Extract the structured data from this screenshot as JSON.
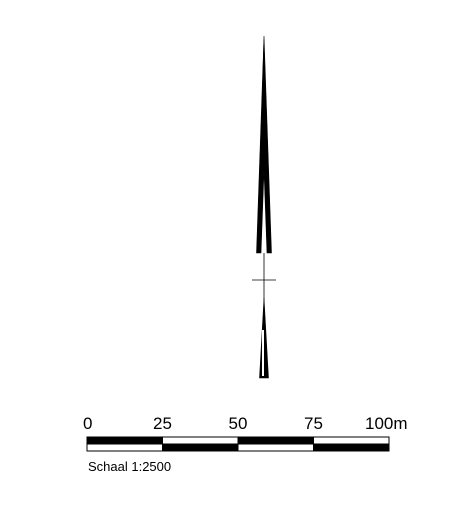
{
  "north_arrow": {
    "icon": "north-arrow-icon",
    "color": "#000000"
  },
  "scale_bar": {
    "units": "m",
    "ticks": [
      {
        "value": 0,
        "label": "0"
      },
      {
        "value": 25,
        "label": "25"
      },
      {
        "value": 50,
        "label": "50"
      },
      {
        "value": 75,
        "label": "75"
      },
      {
        "value": 100,
        "label": "100m"
      }
    ],
    "segments": [
      {
        "from": 0,
        "to": 25,
        "top": "#000000",
        "bottom": "#ffffff"
      },
      {
        "from": 25,
        "to": 50,
        "top": "#ffffff",
        "bottom": "#000000"
      },
      {
        "from": 50,
        "to": 75,
        "top": "#000000",
        "bottom": "#ffffff"
      },
      {
        "from": 75,
        "to": 100,
        "top": "#ffffff",
        "bottom": "#000000"
      }
    ],
    "caption": "Schaal 1:2500"
  }
}
